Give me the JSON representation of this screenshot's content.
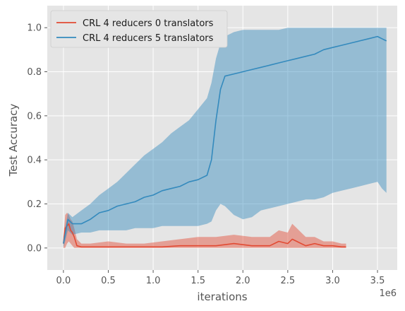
{
  "chart_data": {
    "type": "line",
    "title": "",
    "xlabel": "iterations",
    "ylabel": "Test Accuracy",
    "x_offset_label": "1e6",
    "x_ticks": [
      0,
      0.5,
      1.0,
      1.5,
      2.0,
      2.5,
      3.0,
      3.5
    ],
    "x_tick_labels": [
      "0.0",
      "0.5",
      "1.0",
      "1.5",
      "2.0",
      "2.5",
      "3.0",
      "3.5"
    ],
    "y_ticks": [
      0,
      0.2,
      0.4,
      0.6,
      0.8,
      1.0
    ],
    "y_tick_labels": [
      "0.0",
      "0.2",
      "0.4",
      "0.6",
      "0.8",
      "1.0"
    ],
    "xlim": [
      -0.18,
      3.72
    ],
    "ylim": [
      -0.1,
      1.1
    ],
    "x_unit_multiplier": 1000000,
    "grid": true,
    "legend_position": "top-left",
    "series": [
      {
        "name": "CRL 4 reducers 0 translators",
        "color": "#E24A33",
        "band_color": "#E24A33",
        "x": [
          0.0,
          0.02,
          0.04,
          0.06,
          0.08,
          0.1,
          0.12,
          0.15,
          0.2,
          0.3,
          0.5,
          0.7,
          0.9,
          1.1,
          1.3,
          1.5,
          1.7,
          1.9,
          2.1,
          2.3,
          2.4,
          2.5,
          2.55,
          2.6,
          2.65,
          2.7,
          2.8,
          2.9,
          3.0,
          3.1,
          3.15
        ],
        "y": [
          0.02,
          0.09,
          0.1,
          0.11,
          0.08,
          0.07,
          0.05,
          0.01,
          0.005,
          0.005,
          0.005,
          0.005,
          0.005,
          0.005,
          0.01,
          0.01,
          0.01,
          0.02,
          0.01,
          0.01,
          0.03,
          0.02,
          0.04,
          0.03,
          0.02,
          0.01,
          0.02,
          0.01,
          0.01,
          0.005,
          0.005
        ],
        "lower": [
          0.0,
          0.0,
          0.02,
          0.03,
          0.02,
          0.01,
          0.0,
          0.0,
          0.0,
          0.0,
          0.0,
          0.0,
          0.0,
          0.0,
          0.0,
          0.0,
          0.0,
          0.0,
          0.0,
          0.0,
          0.0,
          0.0,
          0.0,
          0.0,
          0.0,
          0.0,
          0.0,
          0.0,
          0.0,
          0.0,
          0.0
        ],
        "upper": [
          0.05,
          0.15,
          0.16,
          0.15,
          0.13,
          0.12,
          0.09,
          0.04,
          0.02,
          0.02,
          0.03,
          0.02,
          0.02,
          0.03,
          0.04,
          0.05,
          0.05,
          0.06,
          0.05,
          0.05,
          0.08,
          0.07,
          0.11,
          0.09,
          0.07,
          0.05,
          0.05,
          0.03,
          0.03,
          0.02,
          0.02
        ]
      },
      {
        "name": "CRL 4 reducers 5 translators",
        "color": "#348ABD",
        "band_color": "#348ABD",
        "x": [
          0.0,
          0.05,
          0.1,
          0.2,
          0.3,
          0.4,
          0.5,
          0.6,
          0.7,
          0.8,
          0.9,
          1.0,
          1.1,
          1.2,
          1.3,
          1.4,
          1.5,
          1.6,
          1.65,
          1.7,
          1.75,
          1.8,
          1.9,
          2.0,
          2.1,
          2.2,
          2.3,
          2.4,
          2.5,
          2.6,
          2.7,
          2.8,
          2.9,
          3.0,
          3.1,
          3.2,
          3.3,
          3.4,
          3.5,
          3.55,
          3.6
        ],
        "y": [
          0.02,
          0.13,
          0.11,
          0.11,
          0.13,
          0.16,
          0.17,
          0.19,
          0.2,
          0.21,
          0.23,
          0.24,
          0.26,
          0.27,
          0.28,
          0.3,
          0.31,
          0.33,
          0.4,
          0.58,
          0.72,
          0.78,
          0.79,
          0.8,
          0.81,
          0.82,
          0.83,
          0.84,
          0.85,
          0.86,
          0.87,
          0.88,
          0.9,
          0.91,
          0.92,
          0.93,
          0.94,
          0.95,
          0.96,
          0.95,
          0.94
        ],
        "lower": [
          0.0,
          0.08,
          0.06,
          0.07,
          0.07,
          0.08,
          0.08,
          0.08,
          0.08,
          0.09,
          0.09,
          0.09,
          0.1,
          0.1,
          0.1,
          0.1,
          0.1,
          0.11,
          0.12,
          0.17,
          0.2,
          0.19,
          0.15,
          0.13,
          0.14,
          0.17,
          0.18,
          0.19,
          0.2,
          0.21,
          0.22,
          0.22,
          0.23,
          0.25,
          0.26,
          0.27,
          0.28,
          0.29,
          0.3,
          0.27,
          0.25
        ],
        "upper": [
          0.05,
          0.16,
          0.14,
          0.17,
          0.2,
          0.24,
          0.27,
          0.3,
          0.34,
          0.38,
          0.42,
          0.45,
          0.48,
          0.52,
          0.55,
          0.58,
          0.63,
          0.68,
          0.75,
          0.86,
          0.93,
          0.96,
          0.98,
          0.99,
          0.99,
          0.99,
          0.99,
          0.99,
          1.0,
          1.0,
          1.0,
          1.0,
          1.0,
          1.0,
          1.0,
          1.0,
          1.0,
          1.0,
          1.0,
          1.0,
          1.0
        ]
      }
    ]
  }
}
